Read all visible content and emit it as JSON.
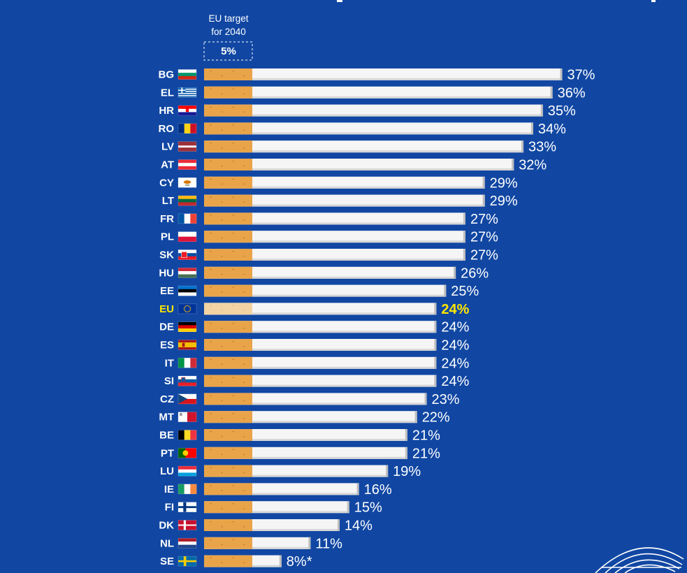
{
  "target": {
    "line1": "EU target",
    "line2": "for 2040",
    "value_label": "5%",
    "value": 5
  },
  "colors": {
    "background": "#1147a3",
    "filter": "#e9a44a",
    "filter_highlight": "#f3d3a4",
    "paper": "#f5f5f5",
    "highlight_text": "#ffe600"
  },
  "chart_data": {
    "type": "bar",
    "orientation": "horizontal",
    "title": "",
    "xlabel": "",
    "ylabel": "",
    "highlight": "EU",
    "categories": [
      "BG",
      "EL",
      "HR",
      "RO",
      "LV",
      "AT",
      "CY",
      "LT",
      "FR",
      "PL",
      "SK",
      "HU",
      "EE",
      "EU",
      "DE",
      "ES",
      "IT",
      "SI",
      "CZ",
      "MT",
      "BE",
      "PT",
      "LU",
      "IE",
      "FI",
      "DK",
      "NL",
      "SE"
    ],
    "values": [
      37,
      36,
      35,
      34,
      33,
      32,
      29,
      29,
      27,
      27,
      27,
      26,
      25,
      24,
      24,
      24,
      24,
      24,
      23,
      22,
      21,
      21,
      19,
      16,
      15,
      14,
      11,
      8
    ],
    "labels": [
      "37%",
      "36%",
      "35%",
      "34%",
      "33%",
      "32%",
      "29%",
      "29%",
      "27%",
      "27%",
      "27%",
      "26%",
      "25%",
      "24%",
      "24%",
      "24%",
      "24%",
      "24%",
      "23%",
      "22%",
      "21%",
      "21%",
      "19%",
      "16%",
      "15%",
      "14%",
      "11%",
      "8%*"
    ],
    "flag_icons": [
      "flag-bg-icon",
      "flag-el-icon",
      "flag-hr-icon",
      "flag-ro-icon",
      "flag-lv-icon",
      "flag-at-icon",
      "flag-cy-icon",
      "flag-lt-icon",
      "flag-fr-icon",
      "flag-pl-icon",
      "flag-sk-icon",
      "flag-hu-icon",
      "flag-ee-icon",
      "flag-eu-icon",
      "flag-de-icon",
      "flag-es-icon",
      "flag-it-icon",
      "flag-si-icon",
      "flag-cz-icon",
      "flag-mt-icon",
      "flag-be-icon",
      "flag-pt-icon",
      "flag-lu-icon",
      "flag-ie-icon",
      "flag-fi-icon",
      "flag-dk-icon",
      "flag-nl-icon",
      "flag-se-icon"
    ]
  },
  "logo": {
    "icon": "european-parliament-logo-icon"
  }
}
